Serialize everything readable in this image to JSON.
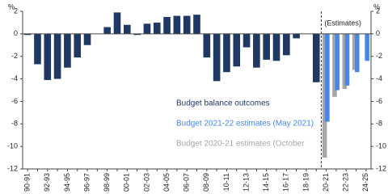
{
  "chart_data": {
    "type": "bar",
    "y_unit": "%",
    "annotation": "(Estimates)",
    "categories": [
      "1990-91",
      null,
      "1992-93",
      null,
      "1994-95",
      null,
      "1996-97",
      null,
      "1998-99",
      null,
      "2000-01",
      null,
      "2002-03",
      null,
      "2004-05",
      null,
      "2006-07",
      null,
      "2008-09",
      null,
      "2010-11",
      null,
      "2012-13",
      null,
      "2014-15",
      null,
      "2016-17",
      null,
      "2018-19",
      null,
      "2020-21",
      null,
      "2022-23",
      null,
      "2024-25"
    ],
    "series": [
      {
        "name": "Budget balance outcomes",
        "color": "#1f3864",
        "values": [
          -0.1,
          -2.7,
          -4.1,
          -4.0,
          -3.0,
          -2.1,
          -1.0,
          0,
          0.6,
          1.9,
          0.8,
          -0.1,
          0.9,
          1.0,
          1.5,
          1.6,
          1.6,
          1.7,
          -2.1,
          -4.2,
          -3.4,
          -2.9,
          -1.2,
          -3.0,
          -2.3,
          -2.4,
          -1.9,
          -0.4,
          0,
          -4.3,
          null,
          null,
          null,
          null,
          null
        ]
      },
      {
        "name": "Budget 2021-22 estimates (May 2021)",
        "color": "#4a86e8",
        "values": [
          null,
          null,
          null,
          null,
          null,
          null,
          null,
          null,
          null,
          null,
          null,
          null,
          null,
          null,
          null,
          null,
          null,
          null,
          null,
          null,
          null,
          null,
          null,
          null,
          null,
          null,
          null,
          null,
          null,
          null,
          -7.8,
          -5.0,
          -4.6,
          -3.4,
          -2.4
        ]
      },
      {
        "name": "Budget 2020-21 estimates (October",
        "color": "#a6a6a6",
        "values": [
          null,
          null,
          null,
          null,
          null,
          null,
          null,
          null,
          null,
          null,
          null,
          null,
          null,
          null,
          null,
          null,
          null,
          null,
          null,
          null,
          null,
          null,
          null,
          null,
          null,
          null,
          null,
          null,
          null,
          null,
          -11.0,
          -5.6,
          -4.9,
          -3.2,
          null
        ]
      }
    ],
    "ylim": [
      -12,
      2
    ],
    "yticks": [
      2,
      0,
      -2,
      -4,
      -6,
      -8,
      -10,
      -12
    ]
  }
}
